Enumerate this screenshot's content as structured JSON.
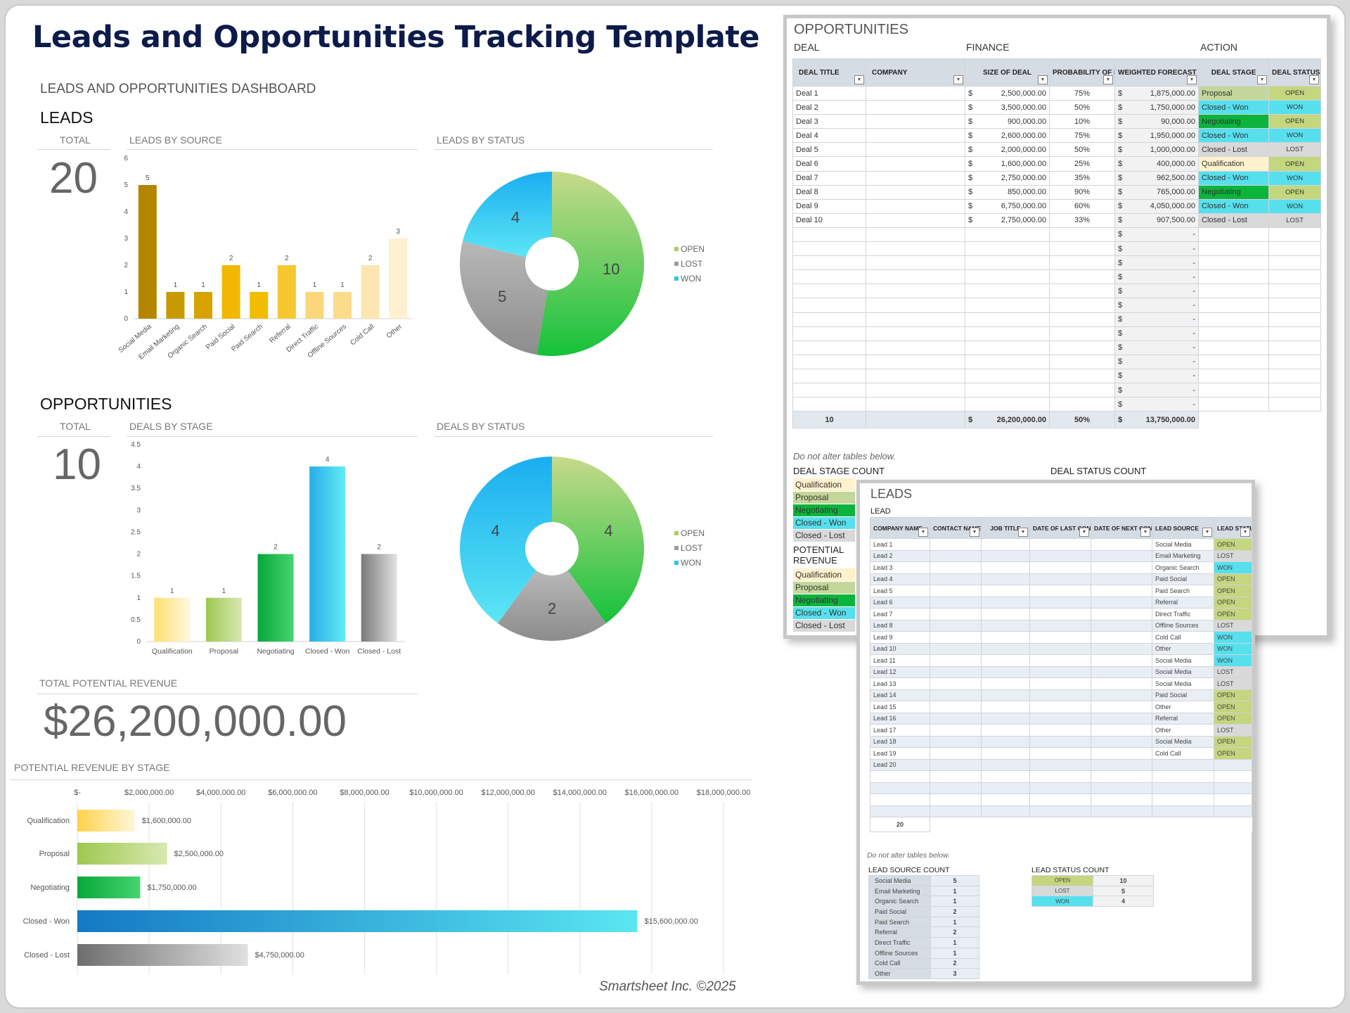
{
  "title": "Leads and Opportunities Tracking Template",
  "dashboard_label": "LEADS AND OPPORTUNITIES DASHBOARD",
  "leads": {
    "heading": "LEADS",
    "total_label": "TOTAL",
    "total": "20",
    "by_source_label": "LEADS BY SOURCE",
    "by_status_label": "LEADS BY STATUS"
  },
  "opportunities": {
    "heading": "OPPORTUNITIES",
    "total_label": "TOTAL",
    "total": "10",
    "by_stage_label": "DEALS BY STAGE",
    "by_status_label": "DEALS BY STATUS"
  },
  "revenue": {
    "label": "TOTAL POTENTIAL REVENUE",
    "value": "$26,200,000.00",
    "by_stage_label": "POTENTIAL REVENUE BY STAGE"
  },
  "footer": "Smartsheet Inc. ©2025",
  "colors": {
    "title": "#0d1b4a",
    "open": "#c4d67e",
    "won": "#56e0ee",
    "lost": "#d9d9d9",
    "qualification": "#fff2cc",
    "proposal": "#c4d79b",
    "negotiating": "#0cb43c",
    "closed_won": "#56e0ee",
    "closed_lost": "#d9d9d9",
    "header": "#d6dce4"
  },
  "chart_data": [
    {
      "type": "bar",
      "title": "LEADS BY SOURCE",
      "categories": [
        "Social Media",
        "Email Marketing",
        "Organic Search",
        "Paid Social",
        "Paid Search",
        "Referral",
        "Direct Traffic",
        "Offline Sources",
        "Cold Call",
        "Other"
      ],
      "values": [
        5,
        1,
        1,
        2,
        1,
        2,
        1,
        1,
        2,
        3
      ],
      "ylim": [
        0,
        6
      ],
      "yticks": [
        0,
        1,
        2,
        3,
        4,
        5,
        6
      ],
      "grid": false,
      "colors": [
        "#b58500",
        "#c79a00",
        "#d6a300",
        "#f0b800",
        "#f2bd00",
        "#f6c72f",
        "#fad77a",
        "#fbdc8c",
        "#fde6b0",
        "#fff1cf"
      ]
    },
    {
      "type": "pie",
      "title": "LEADS BY STATUS",
      "labels": [
        "OPEN",
        "LOST",
        "WON"
      ],
      "values": [
        10,
        5,
        4
      ],
      "legend": "right",
      "donut": true
    },
    {
      "type": "bar",
      "title": "DEALS BY STAGE",
      "categories": [
        "Qualification",
        "Proposal",
        "Negotiating",
        "Closed - Won",
        "Closed - Lost"
      ],
      "values": [
        1,
        1,
        2,
        4,
        2
      ],
      "ylim": [
        0,
        4.5
      ],
      "yticks": [
        0,
        0.5,
        1,
        1.5,
        2,
        2.5,
        3,
        3.5,
        4,
        4.5
      ],
      "grid": false
    },
    {
      "type": "pie",
      "title": "DEALS BY STATUS",
      "labels": [
        "OPEN",
        "LOST",
        "WON"
      ],
      "values": [
        4,
        2,
        4
      ],
      "legend": "right",
      "donut": true
    },
    {
      "type": "bar",
      "orientation": "horizontal",
      "title": "POTENTIAL REVENUE BY STAGE",
      "categories": [
        "Qualification",
        "Proposal",
        "Negotiating",
        "Closed - Won",
        "Closed - Lost"
      ],
      "values": [
        1600000,
        2500000,
        1750000,
        15600000,
        4750000
      ],
      "value_labels": [
        "$1,600,000.00",
        "$2,500,000.00",
        "$1,750,000.00",
        "$15,600,000.00",
        "$4,750,000.00"
      ],
      "xlim": [
        0,
        18000000
      ],
      "xtick_labels": [
        "$-",
        "$2,000,000.00",
        "$4,000,000.00",
        "$6,000,000.00",
        "$8,000,000.00",
        "$10,000,000.00",
        "$12,000,000.00",
        "$14,000,000.00",
        "$16,000,000.00",
        "$18,000,000.00"
      ],
      "grid": true
    }
  ],
  "opp_panel": {
    "title": "OPPORTUNITIES",
    "groups": [
      "DEAL",
      "FINANCE",
      "ACTION"
    ],
    "headers": [
      "DEAL TITLE",
      "COMPANY",
      "SIZE OF DEAL",
      "PROBABILITY OF DEAL",
      "WEIGHTED FORECAST",
      "DEAL STAGE",
      "DEAL STATUS"
    ],
    "rows": [
      {
        "title": "Deal 1",
        "size": "2,500,000.00",
        "prob": "75%",
        "weighted": "1,875,000.00",
        "stage": "Proposal",
        "status": "OPEN"
      },
      {
        "title": "Deal 2",
        "size": "3,500,000.00",
        "prob": "50%",
        "weighted": "1,750,000.00",
        "stage": "Closed - Won",
        "status": "WON"
      },
      {
        "title": "Deal 3",
        "size": "900,000.00",
        "prob": "10%",
        "weighted": "90,000.00",
        "stage": "Negotiating",
        "status": "OPEN"
      },
      {
        "title": "Deal 4",
        "size": "2,600,000.00",
        "prob": "75%",
        "weighted": "1,950,000.00",
        "stage": "Closed - Won",
        "status": "WON"
      },
      {
        "title": "Deal 5",
        "size": "2,000,000.00",
        "prob": "50%",
        "weighted": "1,000,000.00",
        "stage": "Closed - Lost",
        "status": "LOST"
      },
      {
        "title": "Deal 6",
        "size": "1,600,000.00",
        "prob": "25%",
        "weighted": "400,000.00",
        "stage": "Qualification",
        "status": "OPEN"
      },
      {
        "title": "Deal 7",
        "size": "2,750,000.00",
        "prob": "35%",
        "weighted": "962,500.00",
        "stage": "Closed - Won",
        "status": "WON"
      },
      {
        "title": "Deal 8",
        "size": "850,000.00",
        "prob": "90%",
        "weighted": "765,000.00",
        "stage": "Negotiating",
        "status": "OPEN"
      },
      {
        "title": "Deal 9",
        "size": "6,750,000.00",
        "prob": "60%",
        "weighted": "4,050,000.00",
        "stage": "Closed - Won",
        "status": "WON"
      },
      {
        "title": "Deal 10",
        "size": "2,750,000.00",
        "prob": "33%",
        "weighted": "907,500.00",
        "stage": "Closed - Lost",
        "status": "LOST"
      }
    ],
    "empty_weighted": "-",
    "currency": "$",
    "total": {
      "count": "10",
      "size": "26,200,000.00",
      "prob": "50%",
      "weighted": "13,750,000.00"
    },
    "note": "Do not alter tables below.",
    "stage_count_title": "DEAL STAGE COUNT",
    "status_count_title": "DEAL STATUS COUNT",
    "potential_title": "POTENTIAL REVENUE",
    "stages": [
      "Qualification",
      "Proposal",
      "Negotiating",
      "Closed - Won",
      "Closed - Lost"
    ]
  },
  "leads_panel": {
    "title": "LEADS",
    "group": "LEAD",
    "headers": [
      "COMPANY NAME",
      "CONTACT NAME",
      "JOB TITLE",
      "DATE OF LAST CONTACT",
      "DATE OF NEXT CONTACT",
      "LEAD SOURCE",
      "LEAD STATUS"
    ],
    "rows": [
      {
        "name": "Lead 1",
        "source": "Social Media",
        "status": "OPEN"
      },
      {
        "name": "Lead 2",
        "source": "Email Marketing",
        "status": "LOST"
      },
      {
        "name": "Lead 3",
        "source": "Organic Search",
        "status": "WON"
      },
      {
        "name": "Lead 4",
        "source": "Paid Social",
        "status": "OPEN"
      },
      {
        "name": "Lead 5",
        "source": "Paid Search",
        "status": "OPEN"
      },
      {
        "name": "Lead 6",
        "source": "Referral",
        "status": "OPEN"
      },
      {
        "name": "Lead 7",
        "source": "Direct Traffic",
        "status": "OPEN"
      },
      {
        "name": "Lead 8",
        "source": "Offline Sources",
        "status": "LOST"
      },
      {
        "name": "Lead 9",
        "source": "Cold Call",
        "status": "WON"
      },
      {
        "name": "Lead 10",
        "source": "Other",
        "status": "WON"
      },
      {
        "name": "Lead 11",
        "source": "Social Media",
        "status": "WON"
      },
      {
        "name": "Lead 12",
        "source": "Social Media",
        "status": "LOST"
      },
      {
        "name": "Lead 13",
        "source": "Social Media",
        "status": "LOST"
      },
      {
        "name": "Lead 14",
        "source": "Paid Social",
        "status": "OPEN"
      },
      {
        "name": "Lead 15",
        "source": "Other",
        "status": "OPEN"
      },
      {
        "name": "Lead 16",
        "source": "Referral",
        "status": "OPEN"
      },
      {
        "name": "Lead 17",
        "source": "Other",
        "status": "LOST"
      },
      {
        "name": "Lead 18",
        "source": "Social Media",
        "status": "OPEN"
      },
      {
        "name": "Lead 19",
        "source": "Cold Call",
        "status": "OPEN"
      },
      {
        "name": "Lead 20",
        "source": "",
        "status": ""
      }
    ],
    "total": "20",
    "note": "Do not alter tables below.",
    "source_count_title": "LEAD SOURCE COUNT",
    "source_counts": [
      [
        "Social Media",
        "5"
      ],
      [
        "Email Marketing",
        "1"
      ],
      [
        "Organic Search",
        "1"
      ],
      [
        "Paid Social",
        "2"
      ],
      [
        "Paid Search",
        "1"
      ],
      [
        "Referral",
        "2"
      ],
      [
        "Direct Traffic",
        "1"
      ],
      [
        "Offline Sources",
        "1"
      ],
      [
        "Cold Call",
        "2"
      ],
      [
        "Other",
        "3"
      ]
    ],
    "status_count_title": "LEAD STATUS COUNT",
    "status_counts": [
      [
        "OPEN",
        "10"
      ],
      [
        "LOST",
        "5"
      ],
      [
        "WON",
        "4"
      ]
    ]
  }
}
